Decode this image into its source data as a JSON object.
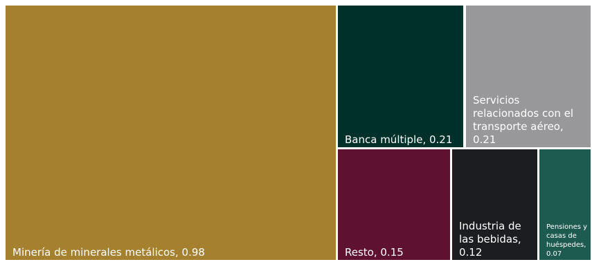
{
  "chart_data": {
    "type": "treemap",
    "items": [
      {
        "label": "Minería de minerales metálicos, 0.98",
        "name": "Minería de minerales metálicos",
        "value": 0.98,
        "color": "#a5802e"
      },
      {
        "label": "Banca múltiple, 0.21",
        "name": "Banca múltiple",
        "value": 0.21,
        "color": "#00302a"
      },
      {
        "label": "Servicios relacionados con el transporte aéreo, 0.21",
        "name": "Servicios relacionados con el transporte aéreo",
        "value": 0.21,
        "color": "#98989a"
      },
      {
        "label": "Resto, 0.15",
        "name": "Resto",
        "value": 0.15,
        "color": "#5f1131"
      },
      {
        "label": "Industria de las bebidas, 0.12",
        "name": "Industria de las bebidas",
        "value": 0.12,
        "color": "#1b1d20"
      },
      {
        "label": "Pensiones y casas de huéspedes, 0.07",
        "name": "Pensiones y casas de huéspedes",
        "value": 0.07,
        "color": "#1e5b4f"
      }
    ]
  }
}
